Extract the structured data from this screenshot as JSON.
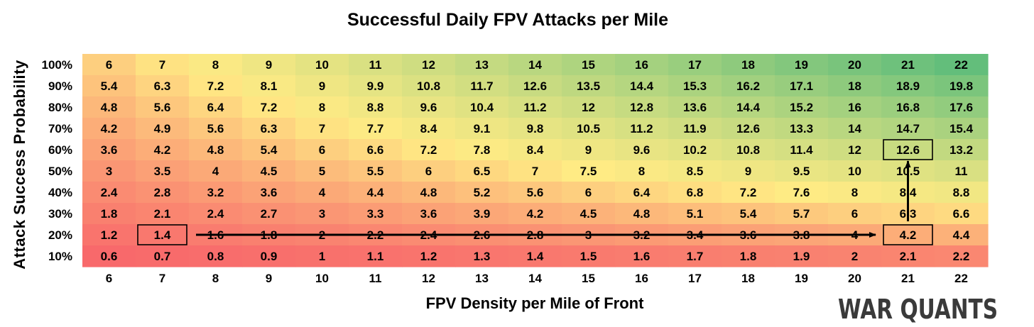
{
  "chart_data": {
    "type": "heatmap",
    "title": "Successful Daily FPV Attacks per Mile",
    "xlabel": "FPV Density per Mile of Front",
    "ylabel": "Attack Success Probability",
    "x": [
      "6",
      "7",
      "8",
      "9",
      "10",
      "11",
      "12",
      "13",
      "14",
      "15",
      "16",
      "17",
      "18",
      "19",
      "20",
      "21",
      "22"
    ],
    "y": [
      "100%",
      "90%",
      "80%",
      "70%",
      "60%",
      "50%",
      "40%",
      "30%",
      "20%",
      "10%"
    ],
    "top_row_labels": [
      "6",
      "7",
      "8",
      "9",
      "10",
      "11",
      "12",
      "13",
      "14",
      "15",
      "16",
      "17",
      "18",
      "19",
      "20",
      "21",
      "22"
    ],
    "values": [
      [
        "6",
        "7",
        "8",
        "9",
        "10",
        "11",
        "12",
        "13",
        "14",
        "15",
        "16",
        "17",
        "18",
        "19",
        "20",
        "21",
        "22"
      ],
      [
        "5.4",
        "6.3",
        "7.2",
        "8.1",
        "9",
        "9.9",
        "10.8",
        "11.7",
        "12.6",
        "13.5",
        "14.4",
        "15.3",
        "16.2",
        "17.1",
        "18",
        "18.9",
        "19.8"
      ],
      [
        "4.8",
        "5.6",
        "6.4",
        "7.2",
        "8",
        "8.8",
        "9.6",
        "10.4",
        "11.2",
        "12",
        "12.8",
        "13.6",
        "14.4",
        "15.2",
        "16",
        "16.8",
        "17.6"
      ],
      [
        "4.2",
        "4.9",
        "5.6",
        "6.3",
        "7",
        "7.7",
        "8.4",
        "9.1",
        "9.8",
        "10.5",
        "11.2",
        "11.9",
        "12.6",
        "13.3",
        "14",
        "14.7",
        "15.4"
      ],
      [
        "3.6",
        "4.2",
        "4.8",
        "5.4",
        "6",
        "6.6",
        "7.2",
        "7.8",
        "8.4",
        "9",
        "9.6",
        "10.2",
        "10.8",
        "11.4",
        "12",
        "12.6",
        "13.2"
      ],
      [
        "3",
        "3.5",
        "4",
        "4.5",
        "5",
        "5.5",
        "6",
        "6.5",
        "7",
        "7.5",
        "8",
        "8.5",
        "9",
        "9.5",
        "10",
        "10.5",
        "11"
      ],
      [
        "2.4",
        "2.8",
        "3.2",
        "3.6",
        "4",
        "4.4",
        "4.8",
        "5.2",
        "5.6",
        "6",
        "6.4",
        "6.8",
        "7.2",
        "7.6",
        "8",
        "8.4",
        "8.8"
      ],
      [
        "1.8",
        "2.1",
        "2.4",
        "2.7",
        "3",
        "3.3",
        "3.6",
        "3.9",
        "4.2",
        "4.5",
        "4.8",
        "5.1",
        "5.4",
        "5.7",
        "6",
        "6.3",
        "6.6"
      ],
      [
        "1.2",
        "1.4",
        "1.6",
        "1.8",
        "2",
        "2.2",
        "2.4",
        "2.6",
        "2.8",
        "3",
        "3.2",
        "3.4",
        "3.6",
        "3.8",
        "4",
        "4.2",
        "4.4"
      ],
      [
        "0.6",
        "0.7",
        "0.8",
        "0.9",
        "1",
        "1.1",
        "1.2",
        "1.3",
        "1.4",
        "1.5",
        "1.6",
        "1.7",
        "1.8",
        "1.9",
        "2",
        "2.1",
        "2.2"
      ]
    ],
    "color_scale": {
      "low": "#f8696b",
      "mid": "#ffeb84",
      "high": "#63be7b",
      "mid_value": 7.5,
      "min": 0.6,
      "max": 22
    },
    "highlights": [
      {
        "x": "7",
        "y": "20%",
        "value": "1.4"
      },
      {
        "x": "21",
        "y": "20%",
        "value": "4.2"
      },
      {
        "x": "21",
        "y": "60%",
        "value": "12.6"
      }
    ],
    "arrows": [
      {
        "from": {
          "x": "7",
          "y": "20%"
        },
        "to": {
          "x": "21",
          "y": "20%"
        }
      },
      {
        "from": {
          "x": "21",
          "y": "20%"
        },
        "to": {
          "x": "21",
          "y": "60%"
        }
      }
    ]
  },
  "watermark": "WAR QUANTS"
}
